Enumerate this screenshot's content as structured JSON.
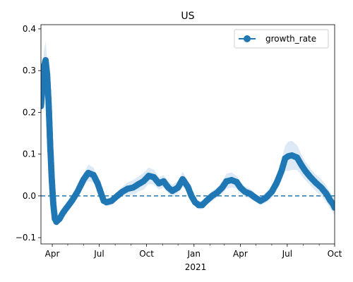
{
  "chart_data": {
    "type": "line",
    "title": "US",
    "xlabel": "",
    "ylabel": "",
    "x_axis_type": "date",
    "xlim": [
      "2020-03-10",
      "2021-10-01"
    ],
    "ylim": [
      -0.115,
      0.41
    ],
    "y_ticks": [
      -0.1,
      0.0,
      0.1,
      0.2,
      0.3,
      0.4
    ],
    "y_tick_labels": [
      "−0.1",
      "0.0",
      "0.1",
      "0.2",
      "0.3",
      "0.4"
    ],
    "x_major_ticks": [
      "2020-04-01",
      "2020-07-01",
      "2020-10-01",
      "2021-01-01",
      "2021-04-01",
      "2021-07-01",
      "2021-10-01"
    ],
    "x_tick_labels": [
      "Apr",
      "Jul",
      "Oct",
      "Jan",
      "Apr",
      "Jul",
      "Oct"
    ],
    "x_year_label": "2021",
    "legend": {
      "position": "top-right",
      "entries": [
        "growth_rate"
      ]
    },
    "reference_line": {
      "y": 0.0,
      "style": "dashed"
    },
    "grid": false,
    "colors": {
      "series": "#1f77b4",
      "band": "#c6dbef",
      "reference": "#1f77b4"
    },
    "series": [
      {
        "name": "growth_rate",
        "marker": "circle",
        "x": [
          "2020-03-10",
          "2020-03-13",
          "2020-03-16",
          "2020-03-19",
          "2020-03-22",
          "2020-03-25",
          "2020-03-28",
          "2020-03-31",
          "2020-04-03",
          "2020-04-06",
          "2020-04-09",
          "2020-04-15",
          "2020-04-22",
          "2020-05-01",
          "2020-05-10",
          "2020-05-20",
          "2020-06-01",
          "2020-06-10",
          "2020-06-20",
          "2020-06-28",
          "2020-07-05",
          "2020-07-10",
          "2020-07-15",
          "2020-07-25",
          "2020-08-05",
          "2020-08-15",
          "2020-08-25",
          "2020-09-05",
          "2020-09-15",
          "2020-09-25",
          "2020-10-05",
          "2020-10-15",
          "2020-10-25",
          "2020-11-03",
          "2020-11-12",
          "2020-11-20",
          "2020-12-01",
          "2020-12-10",
          "2020-12-20",
          "2020-12-27",
          "2021-01-03",
          "2021-01-10",
          "2021-01-17",
          "2021-01-25",
          "2021-02-05",
          "2021-02-15",
          "2021-02-25",
          "2021-03-05",
          "2021-03-15",
          "2021-03-25",
          "2021-04-01",
          "2021-04-10",
          "2021-04-20",
          "2021-05-01",
          "2021-05-10",
          "2021-05-20",
          "2021-06-01",
          "2021-06-10",
          "2021-06-20",
          "2021-06-27",
          "2021-07-03",
          "2021-07-10",
          "2021-07-20",
          "2021-07-28",
          "2021-08-05",
          "2021-08-15",
          "2021-08-25",
          "2021-09-05",
          "2021-09-15",
          "2021-09-22",
          "2021-09-28",
          "2021-10-01"
        ],
        "y": [
          0.215,
          0.26,
          0.31,
          0.325,
          0.29,
          0.22,
          0.12,
          0.04,
          -0.02,
          -0.055,
          -0.062,
          -0.055,
          -0.04,
          -0.025,
          -0.01,
          0.01,
          0.04,
          0.055,
          0.05,
          0.03,
          0.005,
          -0.012,
          -0.015,
          -0.012,
          0.0,
          0.01,
          0.017,
          0.02,
          0.028,
          0.035,
          0.048,
          0.045,
          0.03,
          0.035,
          0.02,
          0.012,
          0.02,
          0.04,
          0.022,
          0.0,
          -0.015,
          -0.022,
          -0.022,
          -0.012,
          0.0,
          0.008,
          0.02,
          0.035,
          0.038,
          0.033,
          0.02,
          0.01,
          0.005,
          -0.005,
          -0.012,
          -0.005,
          0.01,
          0.03,
          0.06,
          0.09,
          0.095,
          0.097,
          0.092,
          0.075,
          0.06,
          0.045,
          0.032,
          0.02,
          0.005,
          -0.01,
          -0.02,
          -0.028
        ],
        "band_halfwidth": [
          0.03,
          0.035,
          0.04,
          0.045,
          0.04,
          0.035,
          0.02,
          0.015,
          0.012,
          0.01,
          0.01,
          0.01,
          0.01,
          0.01,
          0.01,
          0.012,
          0.015,
          0.02,
          0.018,
          0.015,
          0.012,
          0.01,
          0.01,
          0.01,
          0.01,
          0.012,
          0.015,
          0.018,
          0.018,
          0.02,
          0.02,
          0.018,
          0.015,
          0.015,
          0.015,
          0.015,
          0.015,
          0.018,
          0.015,
          0.012,
          0.01,
          0.01,
          0.01,
          0.01,
          0.012,
          0.012,
          0.015,
          0.018,
          0.018,
          0.015,
          0.015,
          0.012,
          0.012,
          0.01,
          0.01,
          0.012,
          0.015,
          0.018,
          0.025,
          0.03,
          0.035,
          0.035,
          0.03,
          0.025,
          0.022,
          0.02,
          0.02,
          0.02,
          0.02,
          0.02,
          0.02,
          0.02
        ]
      }
    ]
  }
}
